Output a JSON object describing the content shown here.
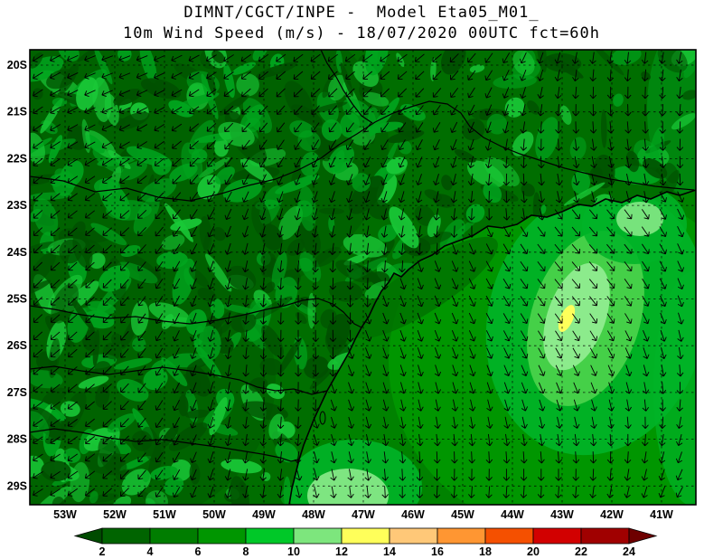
{
  "title": {
    "line1": "DIMNT/CGCT/INPE -  Model Eta05_M01_",
    "line2": "10m Wind Speed (m/s) - 18/07/2020 00UTC fct=60h"
  },
  "map": {
    "lat_labels": [
      "20S",
      "21S",
      "22S",
      "23S",
      "24S",
      "25S",
      "26S",
      "27S",
      "28S",
      "29S"
    ],
    "lon_labels": [
      "53W",
      "52W",
      "51W",
      "50W",
      "49W",
      "48W",
      "47W",
      "46W",
      "45W",
      "44W",
      "43W",
      "42W",
      "41W"
    ],
    "overlay_icon": "wind-barb-arrow"
  },
  "colorbar": {
    "tick_labels": [
      "2",
      "4",
      "6",
      "8",
      "10",
      "12",
      "14",
      "16",
      "18",
      "20",
      "22",
      "24"
    ],
    "colors": [
      "#004b00",
      "#006400",
      "#007d00",
      "#009600",
      "#00c828",
      "#7de67d",
      "#ffff5a",
      "#ffc878",
      "#ff9632",
      "#f55000",
      "#d20000",
      "#a00000",
      "#6e0000"
    ]
  },
  "chart_data": {
    "type": "heatmap",
    "title": "DIMNT/CGCT/INPE -  Model Eta05_M01_",
    "subtitle": "10m Wind Speed (m/s) - 18/07/2020 00UTC fct=60h",
    "variable": "10m wind speed",
    "units": "m/s",
    "valid_time": "18/07/2020 00UTC fct=60h",
    "x_axis": {
      "ticks": [
        "53W",
        "52W",
        "51W",
        "50W",
        "49W",
        "48W",
        "47W",
        "46W",
        "45W",
        "44W",
        "43W",
        "42W",
        "41W"
      ]
    },
    "y_axis": {
      "ticks": [
        "20S",
        "21S",
        "22S",
        "23S",
        "24S",
        "25S",
        "26S",
        "27S",
        "28S",
        "29S"
      ]
    },
    "grid": "dashed",
    "legend_position": "bottom colorbar with out-of-range arrows",
    "color_levels": [
      2,
      4,
      6,
      8,
      10,
      12,
      14,
      16,
      18,
      20,
      22,
      24
    ],
    "palette": [
      "#004b00",
      "#006400",
      "#007d00",
      "#009600",
      "#00c828",
      "#7de67d",
      "#ffff5a",
      "#ffc878",
      "#ff9632",
      "#f55000",
      "#d20000",
      "#a00000",
      "#6e0000"
    ],
    "field_summary": [
      "mottled 2-8 m/s winds over inland terrain (west/northwest)",
      "broad 8-12 m/s wind maximum offshore near 43W 25S-26S with a small 12-14 m/s yellow core",
      "secondary 8-12 m/s patch near the coast around 48W-47W 29S",
      "lighter 8-12 m/s patch off Rio coast near 42W 23S"
    ],
    "overlay": "black wind direction arrows, generally northerly over ocean, northeasterly over land"
  }
}
